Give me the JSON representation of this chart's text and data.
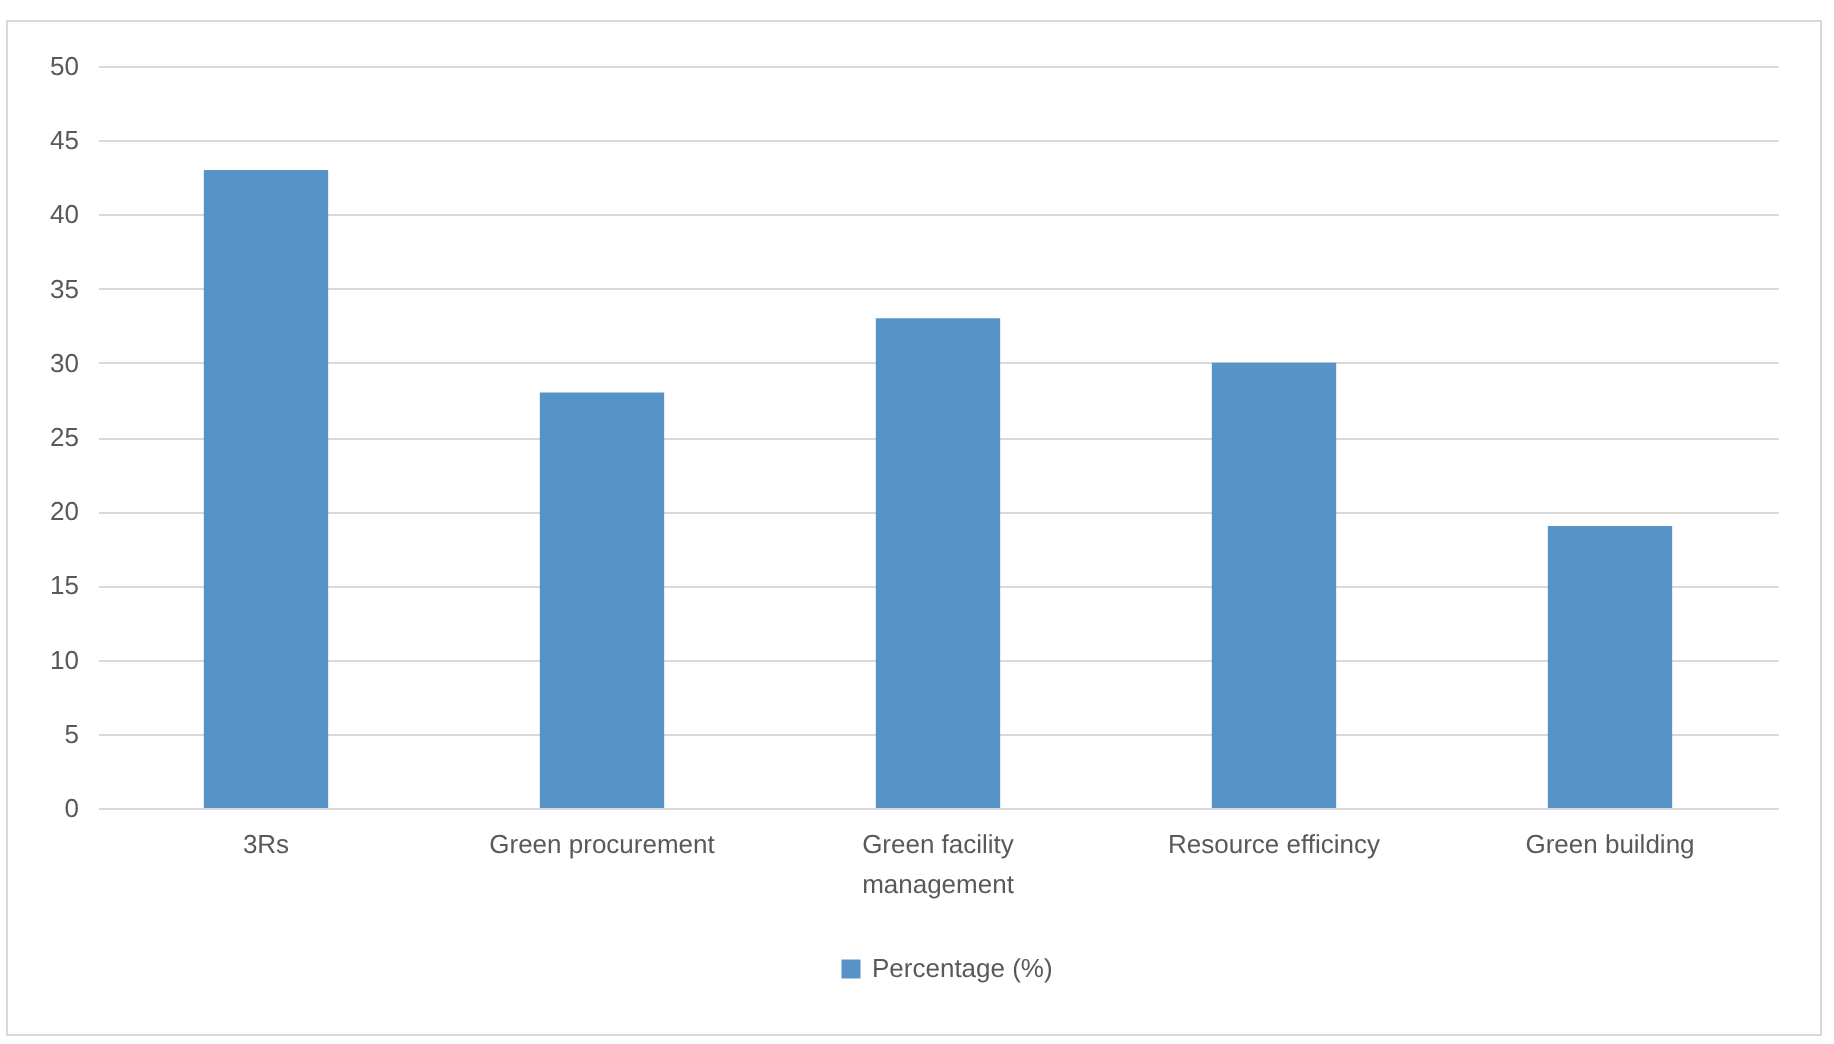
{
  "chart_data": {
    "type": "bar",
    "categories": [
      "3Rs",
      "Green procurement",
      "Green facility management",
      "Resource efficincy",
      "Green building"
    ],
    "series": [
      {
        "name": "Percentage (%)",
        "color": "#5893c7",
        "values": [
          43,
          28,
          33,
          30,
          19
        ]
      }
    ],
    "ylim": [
      0,
      50
    ],
    "yticks": [
      0,
      5,
      10,
      15,
      20,
      25,
      30,
      35,
      40,
      45,
      50
    ],
    "grid": "y",
    "legend": "bottom"
  }
}
